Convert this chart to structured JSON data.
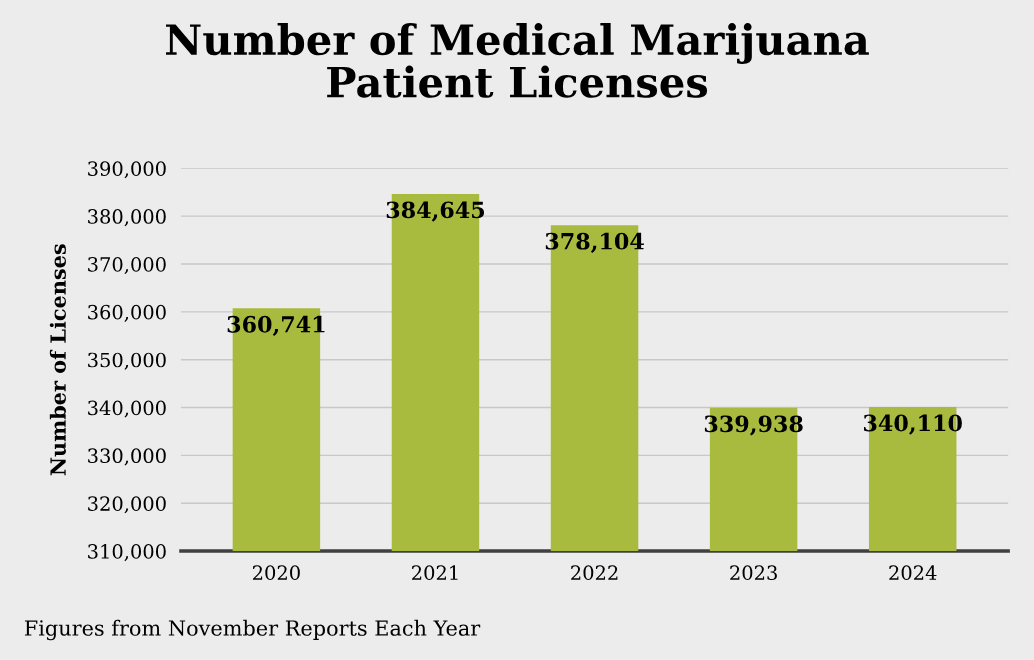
{
  "chart_data": {
    "type": "bar",
    "title": "Number of Medical Marijuana\nPatient Licenses",
    "ylabel": "Number of Licenses",
    "categories": [
      "2020",
      "2021",
      "2022",
      "2023",
      "2024"
    ],
    "series": [
      {
        "color": "#a9bb3f",
        "values": [
          360741,
          384645,
          378104,
          339938,
          340110
        ],
        "value_labels": [
          "360,741",
          "384,645",
          "378,104",
          "339,938",
          "340,110"
        ]
      }
    ],
    "ylim": [
      310000,
      390000
    ],
    "yticks": [
      {
        "value": 310000,
        "label": "310,000"
      },
      {
        "value": 320000,
        "label": "320,000"
      },
      {
        "value": 330000,
        "label": "330,000"
      },
      {
        "value": 340000,
        "label": "340,000"
      },
      {
        "value": 350000,
        "label": "350,000"
      },
      {
        "value": 360000,
        "label": "360,000"
      },
      {
        "value": 370000,
        "label": "370,000"
      },
      {
        "value": 380000,
        "label": "380,000"
      },
      {
        "value": 390000,
        "label": "390,000"
      }
    ],
    "grid": "y",
    "legend": false,
    "annotations": [
      "Figures from November Reports Each Year"
    ]
  }
}
